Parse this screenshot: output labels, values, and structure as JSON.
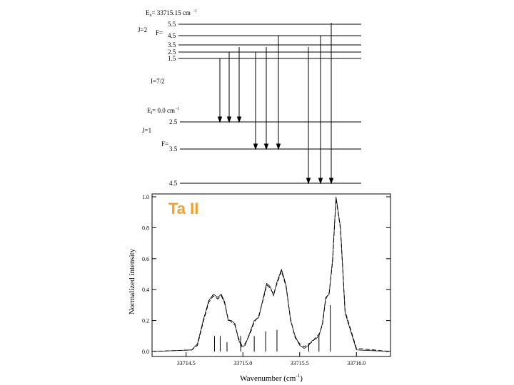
{
  "colors": {
    "species_label": "#f0a030",
    "ink": "#000000"
  },
  "diagram": {
    "upper": {
      "energy_label": "E",
      "energy_sub": "u",
      "energy_value": "= 33715.15 cm",
      "energy_exp": "-1",
      "J_label": "J=2",
      "F_label": "F=",
      "F_levels": [
        "5.5",
        "4.5",
        "3.5",
        "2.5",
        "1.5"
      ]
    },
    "I_label": "I=7/2",
    "lower": {
      "energy_label": "E",
      "energy_sub": "l",
      "energy_value": "= 0.0 cm",
      "energy_exp": "-1",
      "J_label": "J=1",
      "F_label": "F=",
      "F_levels": [
        "2.5",
        "3.5",
        "4.5"
      ]
    }
  },
  "species_label": "Ta II",
  "chart_data": {
    "type": "line",
    "xlabel": "Wavenumber (cm",
    "xlabel_exp": "-1",
    "xlabel_close": ")",
    "ylabel": "Normalized intensity",
    "xlim": [
      33714.2,
      33716.3
    ],
    "ylim": [
      0.0,
      1.0
    ],
    "x_ticks": [
      "33714.5",
      "33715.0",
      "33715.5",
      "33716.0"
    ],
    "x_tick_values": [
      33714.5,
      33715.0,
      33715.5,
      33716.0
    ],
    "y_ticks": [
      "0.0",
      "0.2",
      "0.4",
      "0.6",
      "0.8",
      "1.0"
    ],
    "y_tick_values": [
      0.0,
      0.2,
      0.4,
      0.6,
      0.8,
      1.0
    ],
    "series": [
      {
        "style": "line",
        "x": [
          33714.2,
          33714.55,
          33714.6,
          33714.65,
          33714.7,
          33714.74,
          33714.78,
          33714.81,
          33714.84,
          33714.87,
          33714.9,
          33714.93,
          33714.96,
          33714.99,
          33715.02,
          33715.06,
          33715.1,
          33715.14,
          33715.18,
          33715.21,
          33715.24,
          33715.27,
          33715.3,
          33715.34,
          33715.38,
          33715.42,
          33715.46,
          33715.5,
          33715.54,
          33715.58,
          33715.61,
          33715.64,
          33715.67,
          33715.7,
          33715.73,
          33715.76,
          33715.79,
          33715.82,
          33715.86,
          33715.9,
          33716.0,
          33716.3
        ],
        "y": [
          0.0,
          0.01,
          0.05,
          0.2,
          0.33,
          0.37,
          0.35,
          0.37,
          0.32,
          0.2,
          0.2,
          0.18,
          0.08,
          0.03,
          0.04,
          0.12,
          0.2,
          0.22,
          0.35,
          0.44,
          0.42,
          0.36,
          0.45,
          0.53,
          0.43,
          0.2,
          0.1,
          0.04,
          0.02,
          0.04,
          0.07,
          0.08,
          0.1,
          0.18,
          0.35,
          0.37,
          0.6,
          1.0,
          0.8,
          0.25,
          0.01,
          0.0
        ]
      },
      {
        "style": "dashed",
        "x": [
          33714.2,
          33714.55,
          33714.6,
          33714.65,
          33714.7,
          33714.74,
          33714.78,
          33714.81,
          33714.84,
          33714.87,
          33714.9,
          33714.93,
          33714.96,
          33714.99,
          33715.02,
          33715.06,
          33715.1,
          33715.14,
          33715.18,
          33715.21,
          33715.24,
          33715.27,
          33715.3,
          33715.34,
          33715.38,
          33715.42,
          33715.46,
          33715.5,
          33715.54,
          33715.58,
          33715.61,
          33715.64,
          33715.67,
          33715.7,
          33715.73,
          33715.76,
          33715.79,
          33715.82,
          33715.86,
          33715.9,
          33716.0,
          33716.3
        ],
        "y": [
          0.0,
          0.01,
          0.04,
          0.19,
          0.32,
          0.36,
          0.34,
          0.36,
          0.31,
          0.21,
          0.19,
          0.17,
          0.09,
          0.04,
          0.05,
          0.11,
          0.19,
          0.23,
          0.34,
          0.43,
          0.41,
          0.37,
          0.44,
          0.52,
          0.42,
          0.21,
          0.09,
          0.05,
          0.03,
          0.05,
          0.06,
          0.09,
          0.11,
          0.17,
          0.34,
          0.38,
          0.58,
          0.99,
          0.79,
          0.26,
          0.02,
          0.0
        ]
      },
      {
        "style": "sticks",
        "x": [
          33714.75,
          33714.8,
          33714.86,
          33714.98,
          33715.1,
          33715.2,
          33715.3,
          33715.58,
          33715.67,
          33715.77
        ],
        "y": [
          0.1,
          0.1,
          0.06,
          0.1,
          0.1,
          0.13,
          0.14,
          0.05,
          0.1,
          0.3
        ]
      }
    ]
  }
}
